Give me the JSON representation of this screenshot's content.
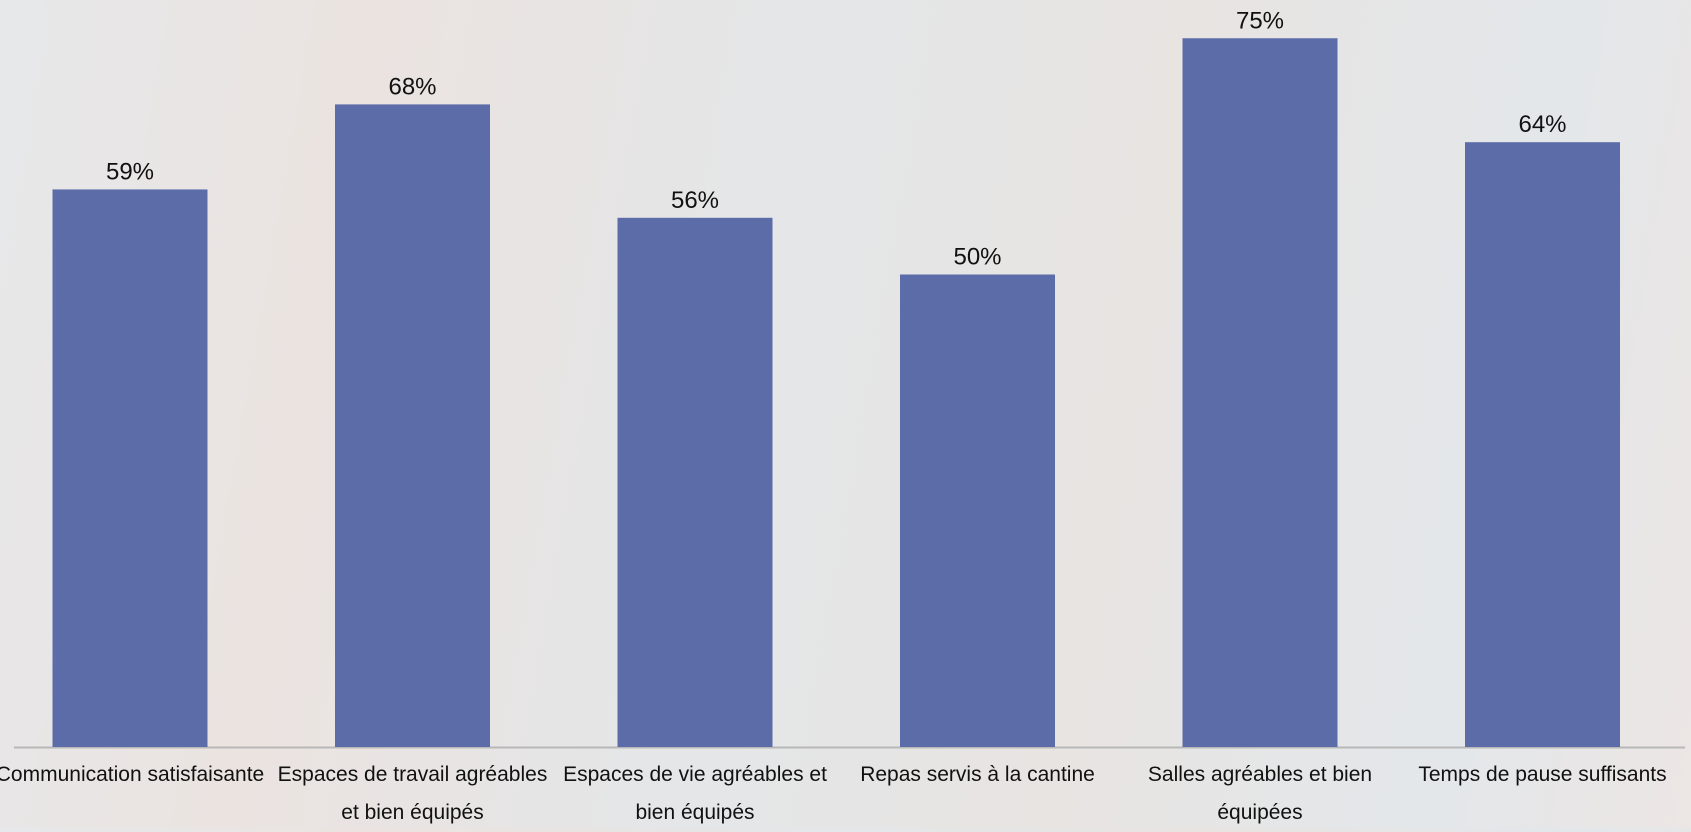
{
  "chart_data": {
    "type": "bar",
    "categories": [
      "Communication satisfaisante",
      "Espaces de travail agréables et bien équipés",
      "Espaces de vie agréables et bien équipés",
      "Repas servis à la cantine",
      "Salles agréables et bien équipées",
      "Temps de pause suffisants"
    ],
    "values": [
      59,
      68,
      56,
      50,
      75,
      64
    ],
    "value_labels": [
      "59%",
      "68%",
      "56%",
      "50%",
      "75%",
      "64%"
    ],
    "color": "#5b6ca8"
  }
}
